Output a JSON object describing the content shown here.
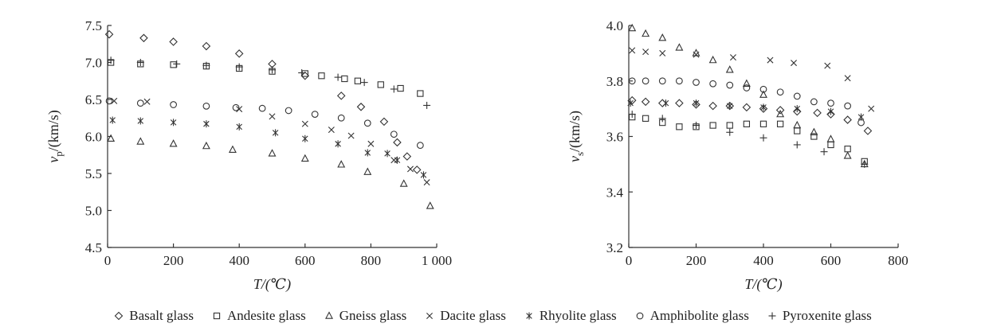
{
  "legend": [
    {
      "name": "Basalt glass",
      "marker": "diamond"
    },
    {
      "name": "Andesite glass",
      "marker": "square"
    },
    {
      "name": "Gneiss glass",
      "marker": "triangle"
    },
    {
      "name": "Dacite glass",
      "marker": "x"
    },
    {
      "name": "Rhyolite glass",
      "marker": "asterisk"
    },
    {
      "name": "Amphibolite glass",
      "marker": "circle"
    },
    {
      "name": "Pyroxenite glass",
      "marker": "plus"
    }
  ],
  "chart_data": [
    {
      "type": "scatter",
      "xlabel": "T/(℃)",
      "ylabel": "vp/(km/s)",
      "ylabel_main": "v",
      "ylabel_sub": "p",
      "ylabel_rest": "/(km/s)",
      "xlim": [
        0,
        1000
      ],
      "ylim": [
        4.5,
        7.5
      ],
      "xticks": [
        0,
        200,
        400,
        600,
        800,
        1000
      ],
      "xtick_labels": [
        "0",
        "200",
        "400",
        "600",
        "800",
        "1 000"
      ],
      "yticks": [
        4.5,
        5.0,
        5.5,
        6.0,
        6.5,
        7.0,
        7.5
      ],
      "ytick_labels": [
        "4.5",
        "5.0",
        "5.5",
        "6.0",
        "6.5",
        "7.0",
        "7.5"
      ],
      "grid": false,
      "series": [
        {
          "name": "Basalt glass",
          "marker": "diamond",
          "points": [
            [
              5,
              7.38
            ],
            [
              110,
              7.33
            ],
            [
              200,
              7.28
            ],
            [
              300,
              7.22
            ],
            [
              400,
              7.12
            ],
            [
              500,
              6.98
            ],
            [
              600,
              6.82
            ],
            [
              710,
              6.55
            ],
            [
              770,
              6.4
            ],
            [
              840,
              6.2
            ],
            [
              880,
              5.92
            ],
            [
              910,
              5.73
            ],
            [
              940,
              5.55
            ]
          ]
        },
        {
          "name": "Andesite glass",
          "marker": "square",
          "points": [
            [
              10,
              7.0
            ],
            [
              100,
              6.98
            ],
            [
              200,
              6.97
            ],
            [
              300,
              6.95
            ],
            [
              400,
              6.92
            ],
            [
              500,
              6.88
            ],
            [
              600,
              6.85
            ],
            [
              650,
              6.82
            ],
            [
              720,
              6.78
            ],
            [
              760,
              6.75
            ],
            [
              830,
              6.7
            ],
            [
              890,
              6.65
            ],
            [
              950,
              6.58
            ]
          ]
        },
        {
          "name": "Gneiss glass",
          "marker": "triangle",
          "points": [
            [
              10,
              5.97
            ],
            [
              100,
              5.93
            ],
            [
              200,
              5.9
            ],
            [
              300,
              5.87
            ],
            [
              380,
              5.82
            ],
            [
              500,
              5.77
            ],
            [
              600,
              5.7
            ],
            [
              710,
              5.62
            ],
            [
              790,
              5.52
            ],
            [
              900,
              5.36
            ],
            [
              980,
              5.06
            ]
          ]
        },
        {
          "name": "Dacite glass",
          "marker": "x",
          "points": [
            [
              20,
              6.48
            ],
            [
              120,
              6.47
            ],
            [
              400,
              6.37
            ],
            [
              500,
              6.27
            ],
            [
              600,
              6.17
            ],
            [
              680,
              6.09
            ],
            [
              740,
              6.01
            ],
            [
              800,
              5.9
            ],
            [
              870,
              5.68
            ],
            [
              920,
              5.56
            ],
            [
              970,
              5.38
            ]
          ]
        },
        {
          "name": "Rhyolite glass",
          "marker": "asterisk",
          "points": [
            [
              15,
              6.22
            ],
            [
              100,
              6.21
            ],
            [
              200,
              6.19
            ],
            [
              300,
              6.17
            ],
            [
              400,
              6.13
            ],
            [
              510,
              6.05
            ],
            [
              600,
              5.97
            ],
            [
              700,
              5.9
            ],
            [
              790,
              5.78
            ],
            [
              850,
              5.77
            ],
            [
              880,
              5.68
            ],
            [
              960,
              5.48
            ]
          ]
        },
        {
          "name": "Amphibolite glass",
          "marker": "circle",
          "points": [
            [
              5,
              6.48
            ],
            [
              100,
              6.45
            ],
            [
              200,
              6.43
            ],
            [
              300,
              6.41
            ],
            [
              390,
              6.39
            ],
            [
              470,
              6.38
            ],
            [
              550,
              6.35
            ],
            [
              630,
              6.3
            ],
            [
              710,
              6.25
            ],
            [
              790,
              6.18
            ],
            [
              870,
              6.03
            ],
            [
              950,
              5.88
            ]
          ]
        },
        {
          "name": "Pyroxenite glass",
          "marker": "plus",
          "points": [
            [
              10,
              7.03
            ],
            [
              100,
              7.0
            ],
            [
              210,
              6.98
            ],
            [
              300,
              6.96
            ],
            [
              400,
              6.94
            ],
            [
              500,
              6.9
            ],
            [
              590,
              6.86
            ],
            [
              700,
              6.8
            ],
            [
              780,
              6.73
            ],
            [
              870,
              6.64
            ],
            [
              970,
              6.42
            ]
          ]
        }
      ]
    },
    {
      "type": "scatter",
      "xlabel": "T/(℃)",
      "ylabel": "vs/(km/s)",
      "ylabel_main": "v",
      "ylabel_sub": "s",
      "ylabel_rest": "/(km/s)",
      "xlim": [
        0,
        800
      ],
      "ylim": [
        3.2,
        4.0
      ],
      "xticks": [
        0,
        200,
        400,
        600,
        800
      ],
      "xtick_labels": [
        "0",
        "200",
        "400",
        "600",
        "800"
      ],
      "yticks": [
        3.2,
        3.4,
        3.6,
        3.8,
        4.0
      ],
      "ytick_labels": [
        "3.2",
        "3.4",
        "3.6",
        "3.8",
        "4.0"
      ],
      "grid": false,
      "series": [
        {
          "name": "Basalt glass",
          "marker": "diamond",
          "points": [
            [
              10,
              3.73
            ],
            [
              50,
              3.725
            ],
            [
              100,
              3.72
            ],
            [
              150,
              3.72
            ],
            [
              200,
              3.715
            ],
            [
              250,
              3.71
            ],
            [
              300,
              3.71
            ],
            [
              350,
              3.705
            ],
            [
              400,
              3.7
            ],
            [
              450,
              3.695
            ],
            [
              500,
              3.69
            ],
            [
              560,
              3.685
            ],
            [
              600,
              3.68
            ],
            [
              650,
              3.66
            ],
            [
              710,
              3.62
            ]
          ]
        },
        {
          "name": "Andesite glass",
          "marker": "square",
          "points": [
            [
              10,
              3.67
            ],
            [
              50,
              3.665
            ],
            [
              100,
              3.65
            ],
            [
              150,
              3.635
            ],
            [
              200,
              3.635
            ],
            [
              250,
              3.64
            ],
            [
              300,
              3.64
            ],
            [
              350,
              3.645
            ],
            [
              400,
              3.645
            ],
            [
              450,
              3.645
            ],
            [
              500,
              3.62
            ],
            [
              550,
              3.6
            ],
            [
              600,
              3.57
            ],
            [
              650,
              3.555
            ],
            [
              700,
              3.51
            ]
          ]
        },
        {
          "name": "Gneiss glass",
          "marker": "triangle",
          "points": [
            [
              10,
              3.99
            ],
            [
              50,
              3.97
            ],
            [
              100,
              3.955
            ],
            [
              150,
              3.92
            ],
            [
              200,
              3.9
            ],
            [
              250,
              3.875
            ],
            [
              300,
              3.84
            ],
            [
              350,
              3.79
            ],
            [
              400,
              3.75
            ],
            [
              450,
              3.68
            ],
            [
              500,
              3.64
            ],
            [
              550,
              3.615
            ],
            [
              600,
              3.59
            ],
            [
              650,
              3.53
            ],
            [
              700,
              3.5
            ]
          ]
        },
        {
          "name": "Dacite glass",
          "marker": "x",
          "points": [
            [
              10,
              3.91
            ],
            [
              50,
              3.905
            ],
            [
              100,
              3.9
            ],
            [
              200,
              3.895
            ],
            [
              310,
              3.885
            ],
            [
              420,
              3.875
            ],
            [
              490,
              3.865
            ],
            [
              590,
              3.855
            ],
            [
              650,
              3.81
            ],
            [
              720,
              3.7
            ]
          ]
        },
        {
          "name": "Rhyolite glass",
          "marker": "asterisk",
          "points": [
            [
              5,
              3.72
            ],
            [
              110,
              3.72
            ],
            [
              200,
              3.72
            ],
            [
              300,
              3.71
            ],
            [
              400,
              3.705
            ],
            [
              500,
              3.7
            ],
            [
              600,
              3.69
            ],
            [
              690,
              3.67
            ]
          ]
        },
        {
          "name": "Amphibolite glass",
          "marker": "circle",
          "points": [
            [
              10,
              3.8
            ],
            [
              50,
              3.8
            ],
            [
              100,
              3.8
            ],
            [
              150,
              3.8
            ],
            [
              200,
              3.795
            ],
            [
              250,
              3.79
            ],
            [
              300,
              3.785
            ],
            [
              350,
              3.775
            ],
            [
              400,
              3.77
            ],
            [
              450,
              3.76
            ],
            [
              500,
              3.745
            ],
            [
              550,
              3.725
            ],
            [
              600,
              3.72
            ],
            [
              650,
              3.71
            ],
            [
              690,
              3.65
            ]
          ]
        },
        {
          "name": "Pyroxenite glass",
          "marker": "plus",
          "points": [
            [
              10,
              3.68
            ],
            [
              100,
              3.665
            ],
            [
              200,
              3.64
            ],
            [
              300,
              3.615
            ],
            [
              400,
              3.595
            ],
            [
              500,
              3.57
            ],
            [
              580,
              3.545
            ],
            [
              700,
              3.5
            ]
          ]
        }
      ]
    }
  ]
}
